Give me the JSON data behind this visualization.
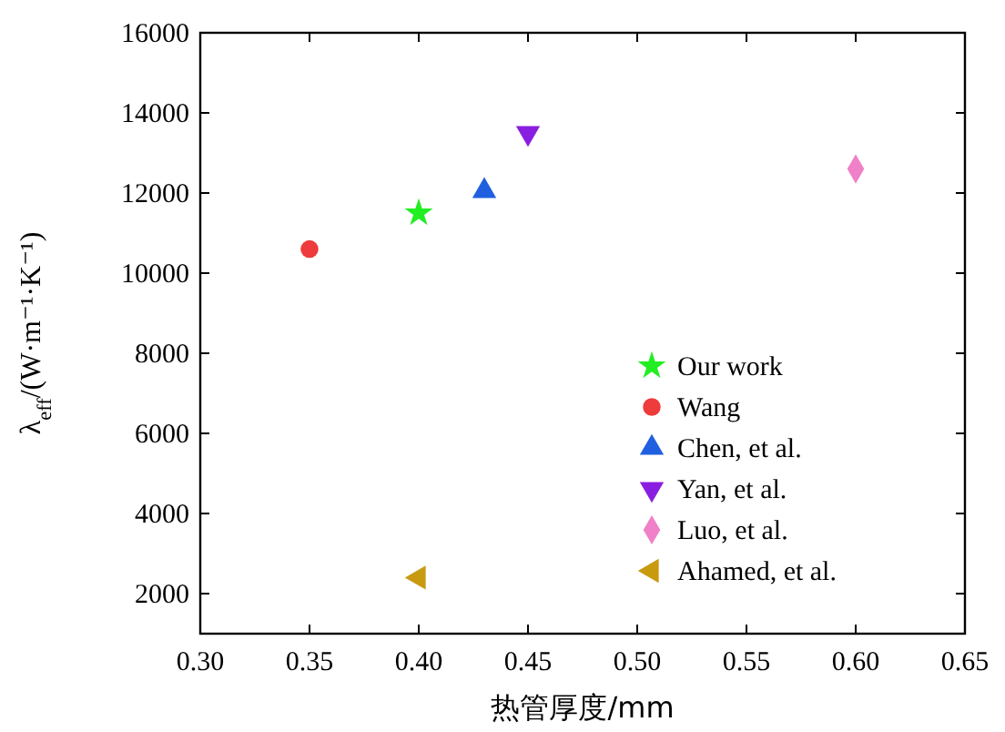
{
  "chart_data": {
    "type": "scatter",
    "xlabel": "热管厚度/mm",
    "ylabel": "λ$_{eff}$/(W·m⁻¹·K⁻¹)",
    "xlim": [
      0.3,
      0.65
    ],
    "xticks": [
      {
        "value": 0.3,
        "label": "0.30"
      },
      {
        "value": 0.35,
        "label": "0.35"
      },
      {
        "value": 0.4,
        "label": "0.40"
      },
      {
        "value": 0.45,
        "label": "0.45"
      },
      {
        "value": 0.5,
        "label": "0.50"
      },
      {
        "value": 0.55,
        "label": "0.55"
      },
      {
        "value": 0.6,
        "label": "0.60"
      },
      {
        "value": 0.65,
        "label": "0.65"
      }
    ],
    "ylim": [
      1000,
      16000
    ],
    "yticks": [
      2000,
      4000,
      6000,
      8000,
      10000,
      12000,
      14000,
      16000
    ],
    "grid": false,
    "legend": "bottom right",
    "series": [
      {
        "name": "Our work",
        "color": "#22ee22",
        "marker": "star",
        "x": [
          0.4
        ],
        "values": [
          11500
        ]
      },
      {
        "name": "Wang",
        "color": "#ee3b3b",
        "marker": "circle",
        "x": [
          0.35
        ],
        "values": [
          10600
        ]
      },
      {
        "name": "Chen, et al.",
        "color": "#2060e0",
        "marker": "triangle",
        "x": [
          0.43
        ],
        "values": [
          12050
        ]
      },
      {
        "name": "Yan, et al.",
        "color": "#8a1ee0",
        "marker": "triangle-down",
        "x": [
          0.45
        ],
        "values": [
          13500
        ]
      },
      {
        "name": "Luo, et al.",
        "color": "#f080c8",
        "marker": "diamond",
        "x": [
          0.6
        ],
        "values": [
          12600
        ]
      },
      {
        "name": "Ahamed, et al.",
        "color": "#c89a10",
        "marker": "triangle-left",
        "x": [
          0.4
        ],
        "values": [
          2400
        ]
      }
    ]
  }
}
